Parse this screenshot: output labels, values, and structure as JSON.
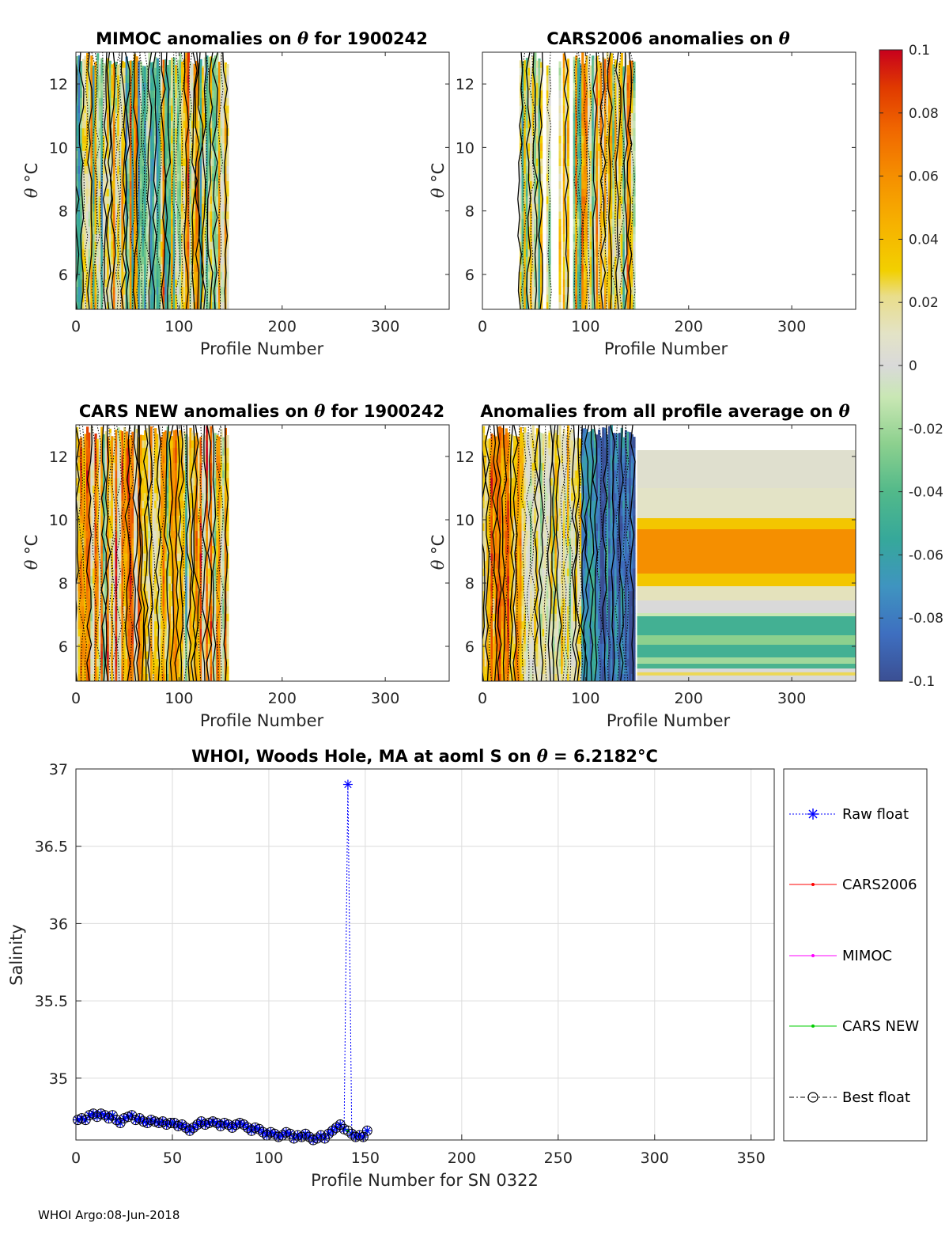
{
  "footer": "WHOI Argo:08-Jun-2018",
  "chart_data": [
    {
      "type": "heatmap",
      "id": "mimoc",
      "title_pre": "MIMOC anomalies on ",
      "title_sym": "θ",
      "title_post": "  for 1900242",
      "xlabel": "Profile Number",
      "ylabel_sym": "θ",
      "ylabel_unit": " °C",
      "xlim": [
        0,
        362
      ],
      "ylim": [
        4.9,
        13.0
      ],
      "xticks": [
        0,
        100,
        200,
        300
      ],
      "yticks": [
        6,
        8,
        10,
        12
      ],
      "data_extent": [
        0,
        148
      ],
      "style": "mixed",
      "seed": 11
    },
    {
      "type": "heatmap",
      "id": "cars2006",
      "title_pre": "CARS2006 anomalies on ",
      "title_sym": "θ",
      "title_post": "",
      "xlabel": "Profile Number",
      "ylabel_sym": "θ",
      "ylabel_unit": " °C",
      "xlim": [
        0,
        362
      ],
      "ylim": [
        4.9,
        13.0
      ],
      "xticks": [
        0,
        100,
        200,
        300
      ],
      "yticks": [
        6,
        8,
        10,
        12
      ],
      "data_extent": [
        36,
        148
      ],
      "gaps": [
        [
          57,
          61
        ],
        [
          66,
          74
        ],
        [
          76,
          78
        ],
        [
          84,
          88
        ]
      ],
      "style": "warm",
      "seed": 23
    },
    {
      "type": "heatmap",
      "id": "carsnew",
      "title_pre": "CARS NEW anomalies on ",
      "title_sym": "θ",
      "title_post": " for 1900242",
      "xlabel": "Profile Number",
      "ylabel_sym": "θ",
      "ylabel_unit": " °C",
      "xlim": [
        0,
        362
      ],
      "ylim": [
        4.9,
        13.0
      ],
      "xticks": [
        0,
        100,
        200,
        300
      ],
      "yticks": [
        6,
        8,
        10,
        12
      ],
      "data_extent": [
        0,
        148
      ],
      "style": "hot",
      "seed": 37
    },
    {
      "type": "heatmap",
      "id": "allprof",
      "title_pre": "Anomalies from all profile average on ",
      "title_sym": "θ",
      "title_post": "",
      "xlabel": "Profile Number",
      "ylabel_sym": "θ",
      "ylabel_unit": " °C",
      "xlim": [
        0,
        362
      ],
      "ylim": [
        4.9,
        13.0
      ],
      "xticks": [
        0,
        100,
        200,
        300
      ],
      "yticks": [
        6,
        8,
        10,
        12
      ],
      "data_extent": [
        0,
        148
      ],
      "style": "avg",
      "seed": 53,
      "band_region": [
        150,
        362
      ],
      "band_top": 12.2,
      "bands": [
        [
          12.2,
          11.0,
          0.006
        ],
        [
          11.0,
          10.05,
          0.01
        ],
        [
          10.05,
          9.7,
          0.035
        ],
        [
          9.7,
          8.3,
          0.06
        ],
        [
          8.3,
          7.9,
          0.035
        ],
        [
          7.9,
          7.45,
          0.012
        ],
        [
          7.45,
          7.05,
          0.0
        ],
        [
          7.05,
          6.95,
          -0.01
        ],
        [
          6.95,
          6.35,
          -0.048
        ],
        [
          6.35,
          6.05,
          -0.025
        ],
        [
          6.05,
          5.65,
          -0.048
        ],
        [
          5.65,
          5.45,
          -0.02
        ],
        [
          5.45,
          5.3,
          -0.045
        ],
        [
          5.3,
          5.18,
          0.0
        ],
        [
          5.18,
          5.08,
          0.025
        ],
        [
          5.08,
          4.9,
          0.0
        ]
      ]
    },
    {
      "type": "scatter",
      "id": "salinity",
      "title_pre": "WHOI, Woods Hole, MA at aoml S on ",
      "title_sym": "θ",
      "title_post": " = 6.2182°C",
      "xlabel": "Profile Number for SN 0322",
      "ylabel": "Salinity",
      "xlim": [
        0,
        362
      ],
      "ylim": [
        34.6,
        37.0
      ],
      "xticks": [
        0,
        50,
        100,
        150,
        200,
        250,
        300,
        350
      ],
      "yticks": [
        35,
        35.5,
        36,
        36.5,
        37
      ],
      "grid": true,
      "legend_position": "right",
      "legend": [
        "Raw float",
        "CARS2006",
        "MIMOC",
        "CARS NEW",
        "Best float"
      ],
      "x": [
        1,
        3,
        5,
        7,
        9,
        11,
        13,
        15,
        17,
        19,
        21,
        23,
        25,
        27,
        29,
        31,
        33,
        35,
        37,
        39,
        41,
        43,
        45,
        47,
        49,
        51,
        53,
        55,
        57,
        59,
        61,
        63,
        65,
        67,
        69,
        71,
        73,
        75,
        77,
        79,
        81,
        83,
        85,
        87,
        89,
        91,
        93,
        95,
        97,
        99,
        101,
        103,
        105,
        107,
        109,
        111,
        113,
        115,
        117,
        119,
        121,
        123,
        125,
        127,
        129,
        131,
        133,
        135,
        137,
        139,
        141,
        143,
        145,
        147,
        149,
        151
      ],
      "raw_float": [
        34.73,
        34.74,
        34.73,
        34.76,
        34.77,
        34.75,
        34.77,
        34.76,
        34.74,
        34.76,
        34.73,
        34.71,
        34.74,
        34.75,
        34.76,
        34.73,
        34.74,
        34.72,
        34.71,
        34.73,
        34.72,
        34.71,
        34.72,
        34.7,
        34.71,
        34.71,
        34.69,
        34.7,
        34.68,
        34.66,
        34.68,
        34.7,
        34.72,
        34.7,
        34.71,
        34.72,
        34.71,
        34.69,
        34.71,
        34.7,
        34.68,
        34.7,
        34.71,
        34.7,
        34.68,
        34.66,
        34.68,
        34.67,
        34.65,
        34.63,
        34.65,
        34.64,
        34.62,
        34.63,
        34.65,
        34.64,
        34.61,
        34.63,
        34.62,
        34.64,
        34.62,
        34.6,
        34.61,
        34.63,
        34.61,
        34.64,
        34.66,
        34.68,
        34.7,
        34.67,
        36.9,
        34.64,
        34.62,
        34.63,
        34.62,
        34.66
      ],
      "best_float": [
        34.73,
        34.74,
        34.73,
        34.76,
        34.77,
        34.75,
        34.77,
        34.76,
        34.74,
        34.76,
        34.73,
        34.71,
        34.74,
        34.75,
        34.76,
        34.73,
        34.74,
        34.72,
        34.71,
        34.73,
        34.72,
        34.71,
        34.72,
        34.7,
        34.71,
        34.71,
        34.69,
        34.7,
        34.68,
        34.66,
        34.68,
        34.7,
        34.72,
        34.7,
        34.71,
        34.72,
        34.71,
        34.69,
        34.71,
        34.7,
        34.68,
        34.7,
        34.71,
        34.7,
        34.68,
        34.66,
        34.68,
        34.67,
        34.65,
        34.63,
        34.65,
        34.64,
        34.62,
        34.63,
        34.65,
        34.64,
        34.61,
        34.63,
        34.62,
        34.64,
        34.62,
        34.6,
        34.61,
        34.63,
        34.61,
        34.64,
        34.66,
        34.68,
        34.7,
        34.67,
        34.66,
        34.64,
        34.62,
        34.63,
        34.62,
        34.66
      ]
    }
  ],
  "colorbar": {
    "min": -0.1,
    "max": 0.1,
    "ticks": [
      0.1,
      0.08,
      0.06,
      0.04,
      0.02,
      0,
      -0.02,
      -0.04,
      -0.06,
      -0.08,
      -0.1
    ],
    "tick_labels": [
      "0.1",
      "0.08",
      "0.06",
      "0.04",
      "0.02",
      "0",
      "-0.02",
      "-0.04",
      "-0.06",
      "-0.08",
      "-0.1"
    ],
    "stops": [
      [
        -0.1,
        "#3b4f93"
      ],
      [
        -0.085,
        "#3e6fc0"
      ],
      [
        -0.07,
        "#3f94c0"
      ],
      [
        -0.055,
        "#36a89a"
      ],
      [
        -0.04,
        "#52b98a"
      ],
      [
        -0.025,
        "#8cd08e"
      ],
      [
        -0.01,
        "#c9e7b4"
      ],
      [
        0.0,
        "#d9d9d9"
      ],
      [
        0.01,
        "#e3e3c6"
      ],
      [
        0.022,
        "#e9dd8a"
      ],
      [
        0.03,
        "#f2d000"
      ],
      [
        0.045,
        "#f6b100"
      ],
      [
        0.06,
        "#f58f00"
      ],
      [
        0.075,
        "#f06600"
      ],
      [
        0.088,
        "#e03a00"
      ],
      [
        0.1,
        "#c7001d"
      ]
    ]
  }
}
